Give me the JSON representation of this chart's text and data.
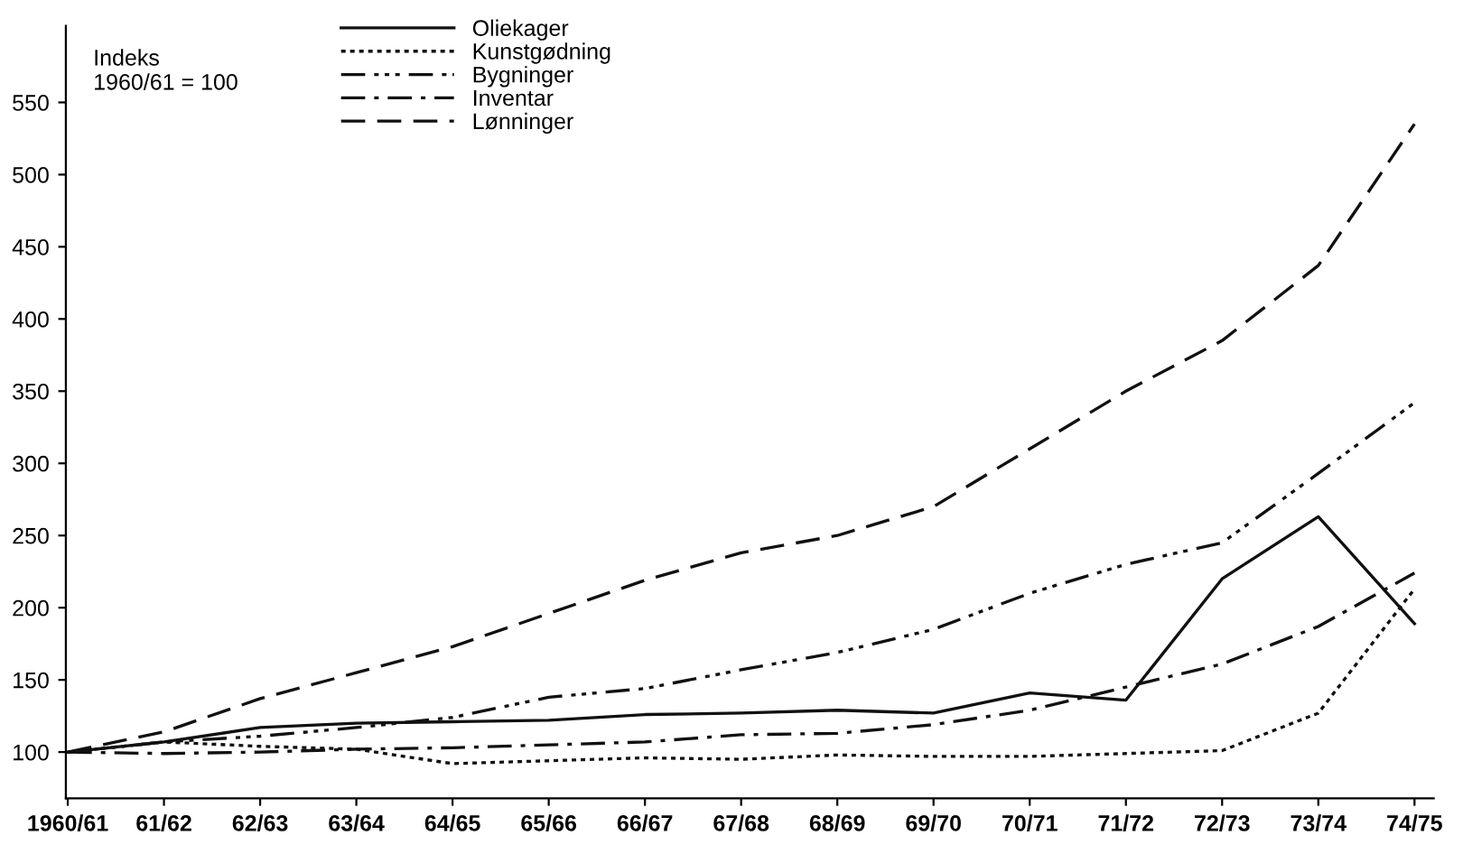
{
  "chart_data": {
    "type": "line",
    "categories": [
      "1960/61",
      "61/62",
      "62/63",
      "63/64",
      "64/65",
      "65/66",
      "66/67",
      "67/68",
      "68/69",
      "69/70",
      "70/71",
      "71/72",
      "72/73",
      "73/74",
      "74/75"
    ],
    "series": [
      {
        "name": "Oliekager",
        "color": "#111111",
        "line_style": "solid",
        "values": [
          100,
          107,
          117,
          120,
          121,
          122,
          126,
          127,
          129,
          127,
          141,
          136,
          220,
          263,
          189
        ]
      },
      {
        "name": "Kunstgødning",
        "color": "#111111",
        "line_style": "dotted",
        "values": [
          100,
          107,
          104,
          102,
          92,
          94,
          96,
          95,
          98,
          97,
          97,
          99,
          101,
          127,
          213
        ]
      },
      {
        "name": "Bygninger",
        "color": "#111111",
        "line_style": "dashdotdot",
        "values": [
          100,
          107,
          111,
          117,
          124,
          138,
          144,
          157,
          169,
          185,
          210,
          230,
          245,
          293,
          342
        ]
      },
      {
        "name": "Inventar",
        "color": "#111111",
        "line_style": "dashdot",
        "values": [
          100,
          99,
          100,
          102,
          103,
          105,
          107,
          112,
          113,
          119,
          129,
          145,
          161,
          187,
          224
        ]
      },
      {
        "name": "Lønninger",
        "color": "#111111",
        "line_style": "dashed",
        "values": [
          100,
          114,
          137,
          155,
          173,
          196,
          219,
          238,
          250,
          270,
          310,
          350,
          385,
          437,
          535
        ]
      }
    ],
    "ylim": [
      68,
      603
    ],
    "yticks": [
      100,
      150,
      200,
      250,
      300,
      350,
      400,
      450,
      500,
      550
    ],
    "annotations": [
      "Indeks\n1960/61 = 100"
    ],
    "grid": false,
    "legend": "top",
    "marker": "none"
  }
}
